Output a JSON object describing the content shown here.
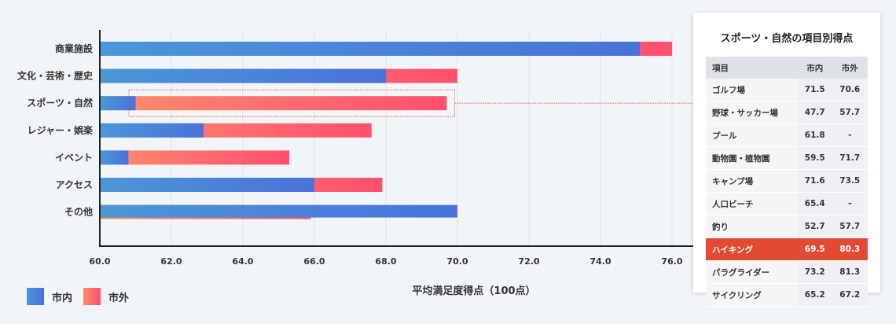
{
  "chart_data": {
    "type": "bar",
    "orientation": "horizontal",
    "categories": [
      "商業施設",
      "文化・芸術・歴史",
      "スポーツ・自然",
      "レジャー・娯楽",
      "イベント",
      "アクセス",
      "その他"
    ],
    "series": [
      {
        "name": "市内",
        "values": [
          75.1,
          68.0,
          61.0,
          62.9,
          60.8,
          66.0,
          70.0
        ]
      },
      {
        "name": "市外",
        "values": [
          76.0,
          70.0,
          69.7,
          67.6,
          65.3,
          67.9,
          65.9
        ]
      }
    ],
    "xticks": [
      "60.0",
      "62.0",
      "64.0",
      "66.0",
      "68.0",
      "70.0",
      "72.0",
      "74.0",
      "76.0"
    ],
    "xlim": [
      60,
      77
    ],
    "xlabel": "平均満足度得点（100点）",
    "grid": true,
    "highlighted_category": "スポーツ・自然",
    "colors": {
      "市内": "#4a84d8",
      "市外": "#ff5a6e"
    }
  },
  "legend": {
    "inner": "市内",
    "outer": "市外"
  },
  "detail_panel": {
    "title": "スポーツ・自然の項目別得点",
    "headers": [
      "項目",
      "市内",
      "市外"
    ],
    "rows": [
      {
        "item": "ゴルフ場",
        "inner": "71.5",
        "outer": "70.6",
        "highlight": false
      },
      {
        "item": "野球・サッカー場",
        "inner": "47.7",
        "outer": "57.7",
        "highlight": false
      },
      {
        "item": "プール",
        "inner": "61.8",
        "outer": "-",
        "highlight": false
      },
      {
        "item": "動物園・植物園",
        "inner": "59.5",
        "outer": "71.7",
        "highlight": false
      },
      {
        "item": "キャンプ場",
        "inner": "71.6",
        "outer": "73.5",
        "highlight": false
      },
      {
        "item": "人口ビーチ",
        "inner": "65.4",
        "outer": "-",
        "highlight": false
      },
      {
        "item": "釣り",
        "inner": "52.7",
        "outer": "57.7",
        "highlight": false
      },
      {
        "item": "ハイキング",
        "inner": "69.5",
        "outer": "80.3",
        "highlight": true
      },
      {
        "item": "パラグライダー",
        "inner": "73.2",
        "outer": "81.3",
        "highlight": false
      },
      {
        "item": "サイクリング",
        "inner": "65.2",
        "outer": "67.2",
        "highlight": false
      }
    ],
    "highlight_color": "#e24a33"
  }
}
